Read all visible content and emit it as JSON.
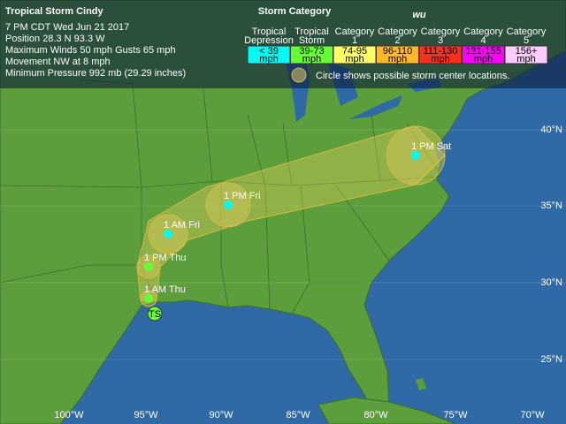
{
  "header": {
    "title": "Tropical Storm Cindy",
    "lines": [
      "7 PM CDT Wed Jun 21 2017",
      "Position 28.3 N 93.3 W",
      "Maximum Winds 50 mph  Gusts 65 mph",
      "Movement NW at 8 mph",
      "Minimum Pressure 992 mb (29.29 inches)"
    ]
  },
  "legend": {
    "title": "Storm Category",
    "logo": "wu",
    "categories": [
      {
        "name": [
          "Tropical",
          "Depression"
        ],
        "range": [
          "< 39",
          "mph"
        ]
      },
      {
        "name": [
          "Tropical",
          "Storm"
        ],
        "range": [
          "39-73",
          "mph"
        ]
      },
      {
        "name": [
          "Category",
          "1"
        ],
        "range": [
          "74-95",
          "mph"
        ]
      },
      {
        "name": [
          "Category",
          "2"
        ],
        "range": [
          "96-110",
          "mph"
        ]
      },
      {
        "name": [
          "Category",
          "3"
        ],
        "range": [
          "111-130",
          "mph"
        ]
      },
      {
        "name": [
          "Category",
          "4"
        ],
        "range": [
          "131-155",
          "mph"
        ]
      },
      {
        "name": [
          "Category",
          "5"
        ],
        "range": [
          "156+",
          "mph"
        ]
      }
    ],
    "note": "Circle shows possible storm center locations."
  },
  "track": {
    "current": "TS",
    "points": [
      "1 AM Thu",
      "1 PM Thu",
      "1 AM Fri",
      "1 PM Fri",
      "1 PM Sat"
    ]
  },
  "grid": {
    "lat": [
      "40°N",
      "35°N",
      "30°N",
      "25°N"
    ],
    "lon": [
      "100°W",
      "95°W",
      "90°W",
      "85°W",
      "80°W",
      "75°W",
      "70°W"
    ]
  }
}
